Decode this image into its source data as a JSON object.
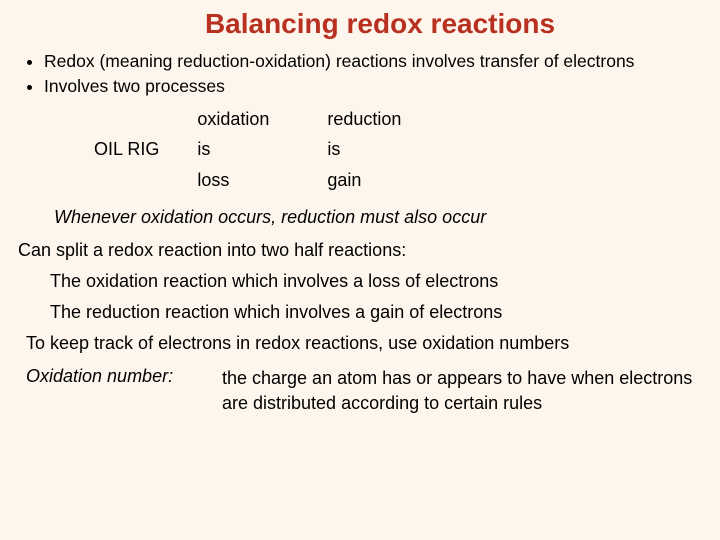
{
  "title": "Balancing redox reactions",
  "colors": {
    "title": "#b83020",
    "bg": "#fef6ed",
    "text": "#000000"
  },
  "bullets": [
    "Redox (meaning reduction-oxidation) reactions involves transfer of electrons",
    "Involves two processes"
  ],
  "mnemonic": "OIL  RIG",
  "table": {
    "rows": [
      {
        "c1": "oxidation",
        "c2": "reduction"
      },
      {
        "c1": "is",
        "c2": "is"
      },
      {
        "c1": "loss",
        "c2": "gain"
      }
    ]
  },
  "emphasis": "Whenever oxidation occurs, reduction must also occur",
  "split_line": "Can split a redox reaction into two half reactions:",
  "half1": "The oxidation reaction which involves a loss of electrons",
  "half2": "The reduction reaction which involves a gain of electrons",
  "track_line": "To keep track of electrons in redox reactions, use oxidation numbers",
  "def_label": "Oxidation number:",
  "def_text": "the charge an atom has or appears to have when electrons are distributed according to certain rules"
}
